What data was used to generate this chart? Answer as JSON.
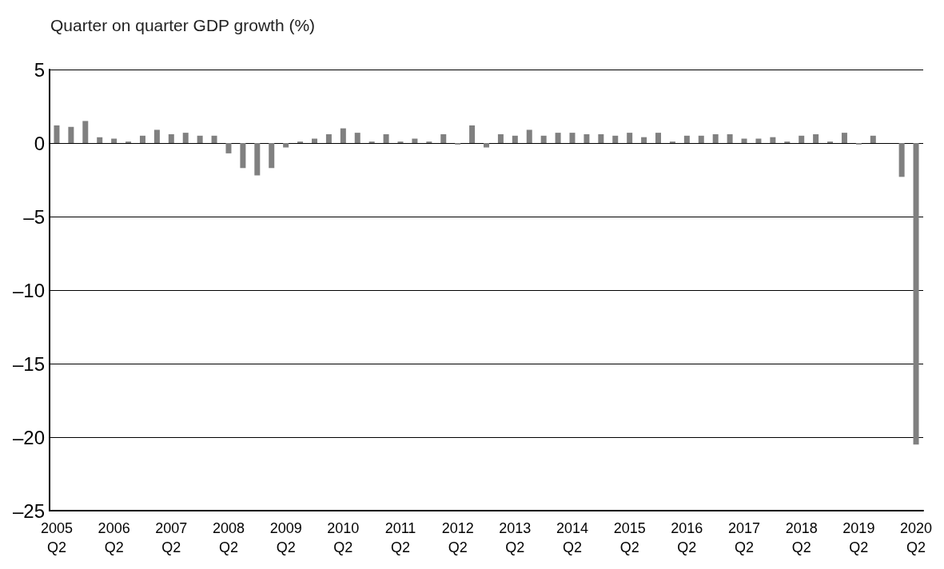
{
  "chart_data": {
    "type": "bar",
    "title": "Quarter on quarter GDP growth (%)",
    "categories": [
      "2005\nQ2",
      null,
      null,
      null,
      "2006\nQ2",
      null,
      null,
      null,
      "2007\nQ2",
      null,
      null,
      null,
      "2008\nQ2",
      null,
      null,
      null,
      "2009\nQ2",
      null,
      null,
      null,
      "2010\nQ2",
      null,
      null,
      null,
      "2011\nQ2",
      null,
      null,
      null,
      "2012\nQ2",
      null,
      null,
      null,
      "2013\nQ2",
      null,
      null,
      null,
      "2014\nQ2",
      null,
      null,
      null,
      "2015\nQ2",
      null,
      null,
      null,
      "2016\nQ2",
      null,
      null,
      null,
      "2017\nQ2",
      null,
      null,
      null,
      "2018\nQ2",
      null,
      null,
      null,
      "2019\nQ2",
      null,
      null,
      null,
      "2020\nQ2"
    ],
    "values": [
      1.2,
      1.1,
      1.5,
      0.4,
      0.3,
      0.1,
      0.5,
      0.9,
      0.6,
      0.7,
      0.5,
      0.5,
      -0.7,
      -1.7,
      -2.2,
      -1.7,
      -0.3,
      0.1,
      0.3,
      0.6,
      1.0,
      0.7,
      0.1,
      0.6,
      0.1,
      0.3,
      0.1,
      0.6,
      -0.1,
      1.2,
      -0.3,
      0.6,
      0.5,
      0.9,
      0.5,
      0.7,
      0.7,
      0.6,
      0.6,
      0.5,
      0.7,
      0.4,
      0.7,
      0.1,
      0.5,
      0.5,
      0.6,
      0.6,
      0.3,
      0.3,
      0.4,
      0.1,
      0.5,
      0.6,
      0.1,
      0.7,
      -0.1,
      0.5,
      0,
      -2.3,
      -20.5
    ],
    "color": "#808080",
    "ylim": [
      -25,
      5
    ],
    "yticks": [
      {
        "value": -25,
        "label": "–25"
      },
      {
        "value": -20,
        "label": "–20"
      },
      {
        "value": -15,
        "label": "–15"
      },
      {
        "value": -10,
        "label": "–10"
      },
      {
        "value": -5,
        "label": "–5"
      },
      0,
      5
    ],
    "grid": "y"
  }
}
